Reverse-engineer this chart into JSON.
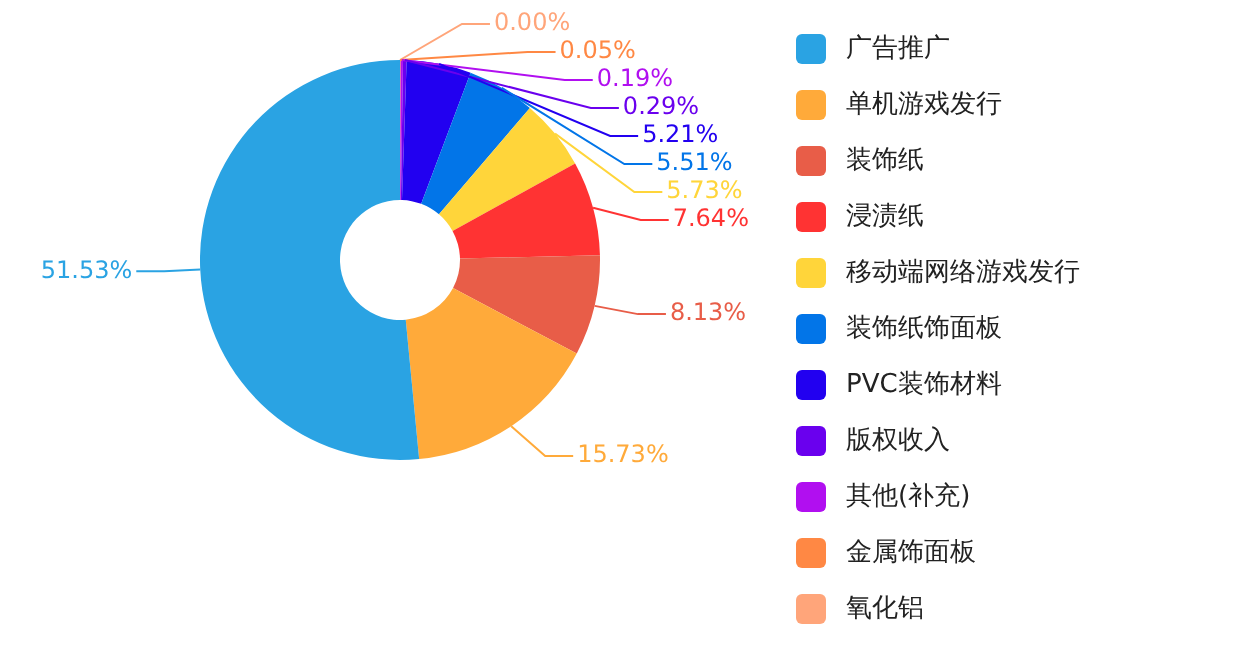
{
  "chart_data": {
    "type": "donut",
    "categories": [
      "广告推广",
      "单机游戏发行",
      "装饰纸",
      "浸渍纸",
      "移动端网络游戏发行",
      "装饰纸饰面板",
      "PVC装饰材料",
      "版权收入",
      "其他(补充)",
      "金属饰面板",
      "氧化铝"
    ],
    "values": [
      51.53,
      15.73,
      8.13,
      7.64,
      5.73,
      5.51,
      5.21,
      0.29,
      0.19,
      0.05,
      0.0
    ],
    "colors": [
      "#2aa3e3",
      "#ffaa3a",
      "#e85d48",
      "#ff3333",
      "#ffd53a",
      "#0275e8",
      "#2200f0",
      "#6a00ee",
      "#b10ff0",
      "#ff8844",
      "#ffa57a"
    ],
    "value_labels": [
      "51.53%",
      "15.73%",
      "8.13%",
      "7.64%",
      "5.73%",
      "5.51%",
      "5.21%",
      "0.29%",
      "0.19%",
      "0.05%",
      "0.00%"
    ],
    "legend": "right"
  }
}
